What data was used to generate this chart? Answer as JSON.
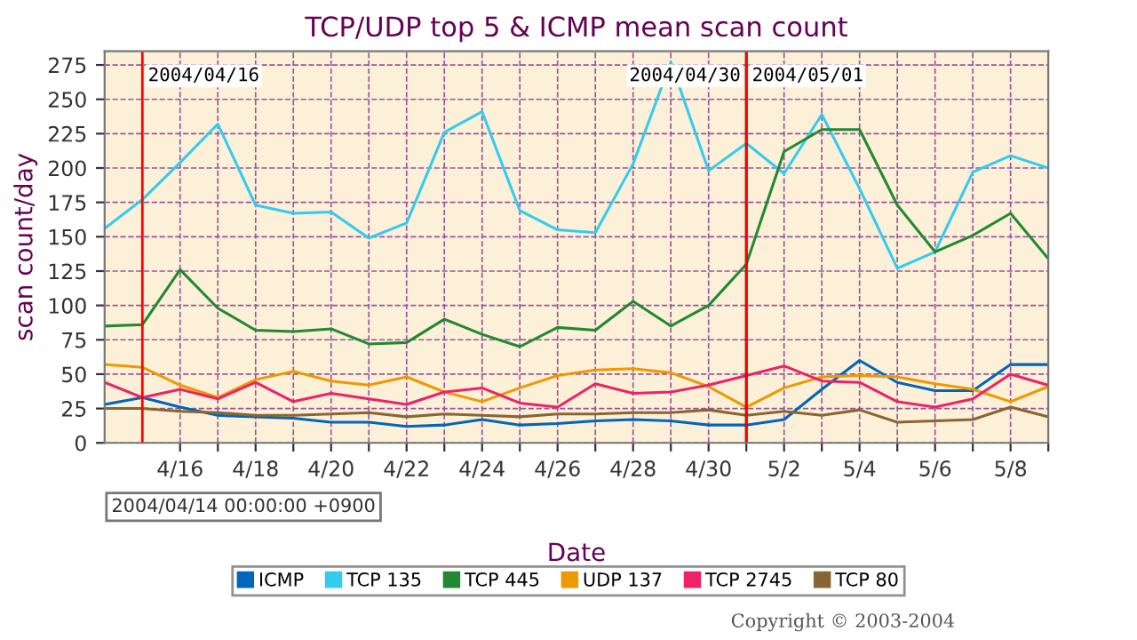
{
  "chart_data": {
    "type": "line",
    "title": "TCP/UDP top 5 & ICMP mean scan count",
    "xlabel": "Date",
    "ylabel": "scan count/day",
    "x": [
      "2004-04-14",
      "2004-04-15",
      "2004-04-16",
      "2004-04-17",
      "2004-04-18",
      "2004-04-19",
      "2004-04-20",
      "2004-04-21",
      "2004-04-22",
      "2004-04-23",
      "2004-04-24",
      "2004-04-25",
      "2004-04-26",
      "2004-04-27",
      "2004-04-28",
      "2004-04-29",
      "2004-04-30",
      "2004-05-01",
      "2004-05-02",
      "2004-05-03",
      "2004-05-04",
      "2004-05-05",
      "2004-05-06",
      "2004-05-07",
      "2004-05-08",
      "2004-05-09"
    ],
    "series": [
      {
        "name": "ICMP",
        "color": "#0066bb",
        "values": [
          28,
          33,
          26,
          20,
          19,
          18,
          15,
          15,
          12,
          13,
          17,
          13,
          14,
          16,
          17,
          16,
          13,
          13,
          17,
          39,
          60,
          44,
          38,
          38,
          57,
          57
        ]
      },
      {
        "name": "TCP 135",
        "color": "#33ccee",
        "values": [
          156,
          177,
          204,
          232,
          173,
          167,
          168,
          149,
          160,
          226,
          241,
          169,
          155,
          153,
          203,
          277,
          198,
          218,
          196,
          239,
          185,
          127,
          139,
          197,
          209,
          200
        ]
      },
      {
        "name": "TCP 445",
        "color": "#228833",
        "values": [
          85,
          86,
          126,
          98,
          82,
          81,
          83,
          72,
          73,
          90,
          79,
          70,
          84,
          82,
          103,
          85,
          100,
          130,
          212,
          228,
          228,
          173,
          139,
          151,
          167,
          134
        ]
      },
      {
        "name": "UDP 137",
        "color": "#ee9900",
        "values": [
          57,
          55,
          42,
          33,
          46,
          52,
          45,
          42,
          48,
          37,
          30,
          40,
          49,
          53,
          54,
          51,
          41,
          26,
          40,
          48,
          49,
          48,
          43,
          39,
          30,
          41
        ]
      },
      {
        "name": "TCP 2745",
        "color": "#ee2266",
        "values": [
          44,
          33,
          39,
          32,
          44,
          30,
          36,
          32,
          28,
          37,
          40,
          29,
          26,
          43,
          36,
          37,
          42,
          49,
          56,
          45,
          44,
          30,
          26,
          32,
          50,
          42
        ]
      },
      {
        "name": "TCP 80",
        "color": "#886633",
        "values": [
          25,
          25,
          23,
          22,
          20,
          20,
          21,
          22,
          19,
          21,
          20,
          19,
          21,
          21,
          22,
          22,
          24,
          20,
          23,
          20,
          24,
          15,
          16,
          17,
          26,
          19
        ]
      }
    ],
    "xlim": [
      "2004-04-14",
      "2004-05-09"
    ],
    "xticks": [
      {
        "value": "2004-04-16",
        "label": "4/16"
      },
      {
        "value": "2004-04-17",
        "label": null
      },
      {
        "value": "2004-04-18",
        "label": "4/18"
      },
      {
        "value": "2004-04-19",
        "label": null
      },
      {
        "value": "2004-04-20",
        "label": "4/20"
      },
      {
        "value": "2004-04-21",
        "label": null
      },
      {
        "value": "2004-04-22",
        "label": "4/22"
      },
      {
        "value": "2004-04-23",
        "label": null
      },
      {
        "value": "2004-04-24",
        "label": "4/24"
      },
      {
        "value": "2004-04-25",
        "label": null
      },
      {
        "value": "2004-04-26",
        "label": "4/26"
      },
      {
        "value": "2004-04-27",
        "label": null
      },
      {
        "value": "2004-04-28",
        "label": "4/28"
      },
      {
        "value": "2004-04-29",
        "label": null
      },
      {
        "value": "2004-04-30",
        "label": "4/30"
      },
      {
        "value": "2004-05-01",
        "label": null
      },
      {
        "value": "2004-05-02",
        "label": "5/2"
      },
      {
        "value": "2004-05-03",
        "label": null
      },
      {
        "value": "2004-05-04",
        "label": "5/4"
      },
      {
        "value": "2004-05-05",
        "label": null
      },
      {
        "value": "2004-05-06",
        "label": "5/6"
      },
      {
        "value": "2004-05-07",
        "label": null
      },
      {
        "value": "2004-05-08",
        "label": "5/8"
      },
      {
        "value": "2004-05-09",
        "label": null
      }
    ],
    "ylim": [
      0,
      285
    ],
    "yticks": [
      0,
      25,
      50,
      75,
      100,
      125,
      150,
      175,
      200,
      225,
      250,
      275
    ],
    "ref_lines": [
      {
        "axis": "x",
        "value": "2004-04-15",
        "label": "2004/04/16",
        "color": "#ff0000"
      },
      {
        "axis": "x",
        "value": "2004-05-01",
        "label": "2004/04/30",
        "color": "#000000"
      },
      {
        "axis": "x",
        "value": "2004-05-01",
        "label": "2004/05/01",
        "color": "#ff0000"
      }
    ],
    "annotations": [
      "2004/04/14 00:00:00 +0900",
      "Copyright © 2003-2004"
    ],
    "grid": true,
    "legend": "bottom",
    "marker": "none",
    "line_style": "solid"
  }
}
